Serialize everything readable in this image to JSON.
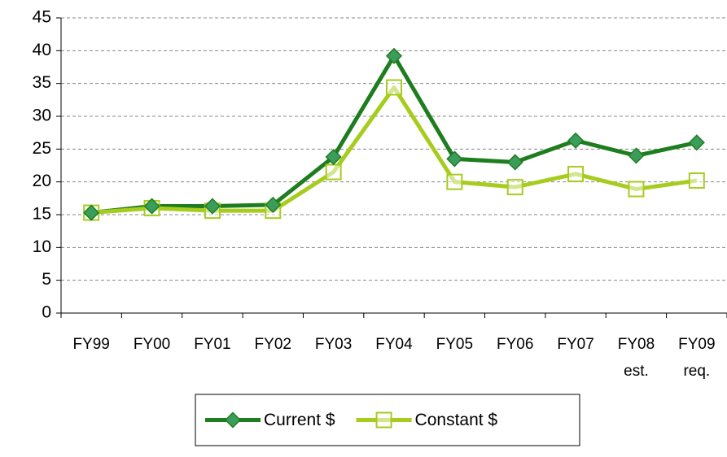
{
  "chart_data": {
    "type": "line",
    "categories": [
      "FY99",
      "FY00",
      "FY01",
      "FY02",
      "FY03",
      "FY04",
      "FY05",
      "FY06",
      "FY07",
      "FY08\nest.",
      "FY09\nreq."
    ],
    "series": [
      {
        "name": "Current $",
        "color": "#1e7d1e",
        "marker_color": "#3c9c5c",
        "marker": "diamond",
        "values": [
          15.3,
          16.3,
          16.3,
          16.5,
          23.8,
          39.2,
          23.5,
          23.0,
          26.3,
          24.0,
          26.0
        ]
      },
      {
        "name": "Constant $",
        "color": "#a6cc1e",
        "marker_color": "#a6cc1e",
        "marker": "square",
        "values": [
          15.3,
          16.0,
          15.6,
          15.6,
          21.5,
          34.4,
          20.0,
          19.2,
          21.2,
          18.9,
          20.2
        ]
      }
    ],
    "ylim": [
      0,
      45
    ],
    "yticks": [
      0,
      5,
      10,
      15,
      20,
      25,
      30,
      35,
      40,
      45
    ],
    "grid": true,
    "legend": "bottom"
  }
}
